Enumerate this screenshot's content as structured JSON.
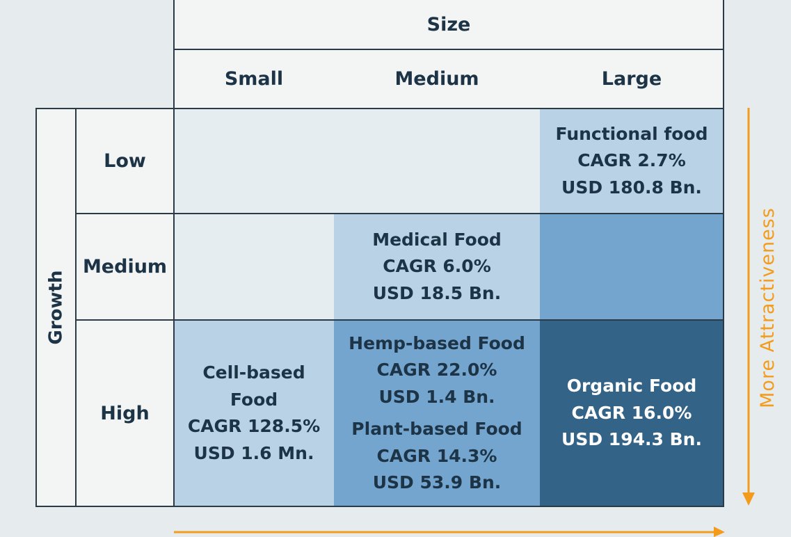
{
  "header": {
    "size_label": "Size",
    "columns": [
      "Small",
      "Medium",
      "Large"
    ]
  },
  "side": {
    "growth_label": "Growth",
    "rows": [
      "Low",
      "Medium",
      "High"
    ],
    "attractiveness_label": "More Attractiveness"
  },
  "cells": {
    "functional": [
      "Functional food",
      "CAGR 2.7%",
      "USD 180.8 Bn."
    ],
    "medical": [
      "Medical Food",
      "CAGR 6.0%",
      "USD 18.5 Bn."
    ],
    "cell_based": [
      "Cell-based",
      "Food",
      "CAGR 128.5%",
      "USD 1.6 Mn."
    ],
    "hemp": [
      "Hemp-based Food",
      "CAGR 22.0%",
      "USD 1.4 Bn."
    ],
    "plant": [
      "Plant-based Food",
      "CAGR 14.3%",
      "USD 53.9 Bn."
    ],
    "organic": [
      "Organic Food",
      "CAGR 16.0%",
      "USD 194.3 Bn."
    ]
  },
  "colors": {
    "empty": "#e6edf0",
    "light": "#b9d2e6",
    "mid": "#73a5cf",
    "dark": "#336488",
    "arrow": "#f39c1b"
  }
}
